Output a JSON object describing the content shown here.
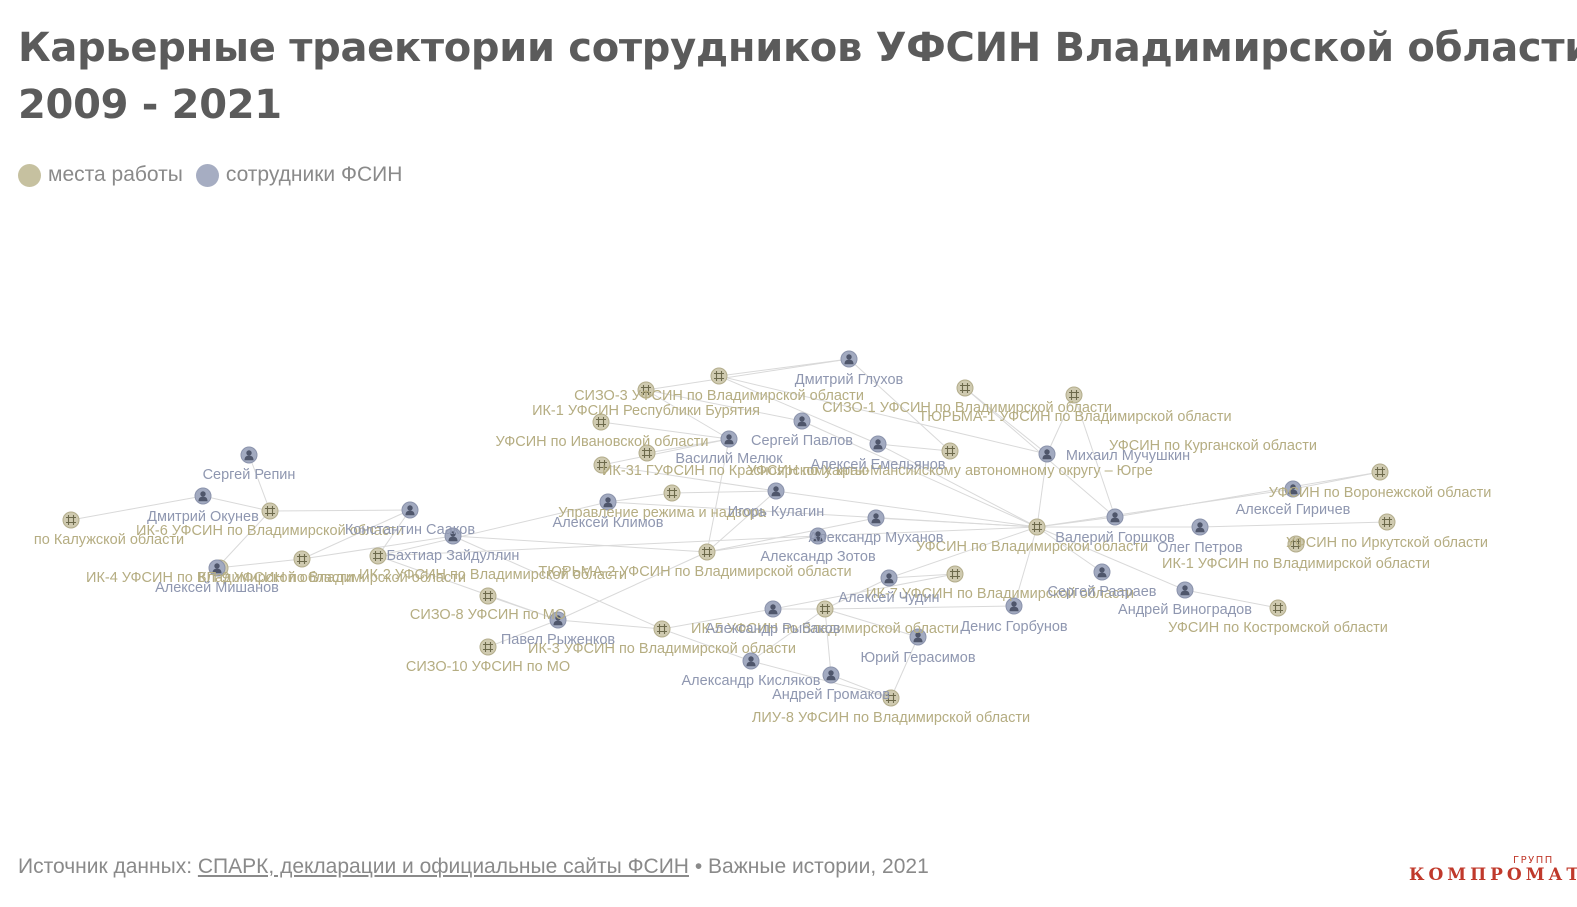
{
  "title": {
    "line1": "Карьерные траектории сотрудников УФСИН Владимирской области",
    "line2": "2009 - 2021"
  },
  "legend": {
    "place_label": "места работы",
    "person_label": "сотрудники ФСИН",
    "place_color": "#c6c1a0",
    "person_color": "#a6adc2"
  },
  "footer": {
    "source_prefix": "Источник данных:",
    "source_link": "СПАРК, декларации и официальные сайты ФСИН",
    "source_suffix": "• Важные истории, 2021"
  },
  "logo": {
    "main": "КОМПРОМАТ",
    "sup": "ГРУПП"
  },
  "diagram": {
    "type": "network",
    "node_types": {
      "place": {
        "icon": "grid-icon",
        "color": "#c6c1a0",
        "label_color": "#b5ad82"
      },
      "person": {
        "icon": "person-icon",
        "color": "#a6adc2",
        "label_color": "#8f97b0"
      }
    },
    "nodes": [
      {
        "id": "p_kaluga",
        "type": "place",
        "label": "по Калужской области"
      },
      {
        "id": "p_ik6",
        "type": "place",
        "label": "ИК-6 УФСИН по Владимирской области"
      },
      {
        "id": "p_ik4",
        "type": "place",
        "label": "ИК-4 УФСИН по Владимирской области"
      },
      {
        "id": "p_kp9",
        "type": "place",
        "label": "КП-9 УФСИН по Владимирской области"
      },
      {
        "id": "p_ik2",
        "type": "place",
        "label": "ИК-2 УФСИН по Владимирской области"
      },
      {
        "id": "p_sizo8",
        "type": "place",
        "label": "СИЗО-8 УФСИН по МО"
      },
      {
        "id": "p_sizo10",
        "type": "place",
        "label": "СИЗО-10 УФСИН по МО"
      },
      {
        "id": "p_ik3",
        "type": "place",
        "label": "ИК-3 УФСИН по Владимирской области"
      },
      {
        "id": "p_sizo3",
        "type": "place",
        "label": "СИЗО-3 УФСИН по Владимирской области"
      },
      {
        "id": "p_ik1bur",
        "type": "place",
        "label": "ИК-1 УФСИН Республики Бурятия"
      },
      {
        "id": "p_ivan",
        "type": "place",
        "label": "УФСИН по Ивановской области"
      },
      {
        "id": "p_ik31",
        "type": "place",
        "label": "ИК-31 ГУФСИН по Красноярскому краю"
      },
      {
        "id": "p_upr",
        "type": "place",
        "label": "Управление режима и надзора"
      },
      {
        "id": "p_turma2",
        "type": "place",
        "label": "ТЮРЬМА-2 УФСИН по Владимирской области"
      },
      {
        "id": "p_sizo1",
        "type": "place",
        "label": "СИЗО-1 УФСИН по Владимирской области"
      },
      {
        "id": "p_hmao",
        "type": "place",
        "label": "УФСИН по Ханты-Мансийскому автономному округу – Югре"
      },
      {
        "id": "p_turma1",
        "type": "place",
        "label": "ТЮРЬМА-1 УФСИН по Владимирской области"
      },
      {
        "id": "p_kurgan",
        "type": "place",
        "label": "УФСИН по Курганской области"
      },
      {
        "id": "p_vladobl",
        "type": "place",
        "label": "УФСИН по Владимирской области"
      },
      {
        "id": "p_ik5",
        "type": "place",
        "label": "ИК-5 УФСИН по Владимирской области"
      },
      {
        "id": "p_ik7",
        "type": "place",
        "label": "ИК-7 УФСИН по Владимирской области"
      },
      {
        "id": "p_liu8",
        "type": "place",
        "label": "ЛИУ-8 УФСИН по Владимирской области"
      },
      {
        "id": "p_voronezh",
        "type": "place",
        "label": "УФСИН по Воронежской области"
      },
      {
        "id": "p_irkutsk",
        "type": "place",
        "label": "УФСИН по Иркутской области"
      },
      {
        "id": "p_ik1vlad",
        "type": "place",
        "label": "ИК-1 УФСИН по Владимирской области"
      },
      {
        "id": "p_kostroma",
        "type": "place",
        "label": "УФСИН по Костромской области"
      },
      {
        "id": "h_a",
        "type": "person",
        "label": "Алексей Мишанов"
      },
      {
        "id": "h_b",
        "type": "person",
        "label": "Сергей Репин"
      },
      {
        "id": "h_c",
        "type": "person",
        "label": "Дмитрий Окунев"
      },
      {
        "id": "h_d",
        "type": "person",
        "label": "Константин Сааков"
      },
      {
        "id": "h_e",
        "type": "person",
        "label": "Бахтиар Зайдуллин"
      },
      {
        "id": "h_f",
        "type": "person",
        "label": "Дмитрий Глухов"
      },
      {
        "id": "h_g",
        "type": "person",
        "label": "Сергей Павлов"
      },
      {
        "id": "h_h",
        "type": "person",
        "label": "Василий Мелюк"
      },
      {
        "id": "h_i",
        "type": "person",
        "label": "Алексей Емельянов"
      },
      {
        "id": "h_j",
        "type": "person",
        "label": "Алексей Климов"
      },
      {
        "id": "h_k",
        "type": "person",
        "label": "Игорь Кулагин"
      },
      {
        "id": "h_l",
        "type": "person",
        "label": "Михаил Мучушкин"
      },
      {
        "id": "h_m",
        "type": "person",
        "label": "Александр Муханов"
      },
      {
        "id": "h_n",
        "type": "person",
        "label": "Александр Зотов"
      },
      {
        "id": "h_o",
        "type": "person",
        "label": "Алексей Чудин"
      },
      {
        "id": "h_p",
        "type": "person",
        "label": "Павел Рыженков"
      },
      {
        "id": "h_q",
        "type": "person",
        "label": "Александр Рыбаков"
      },
      {
        "id": "h_r",
        "type": "person",
        "label": "Александр Кисляков"
      },
      {
        "id": "h_s",
        "type": "person",
        "label": "Андрей Громаков"
      },
      {
        "id": "h_t",
        "type": "person",
        "label": "Юрий Герасимов"
      },
      {
        "id": "h_u",
        "type": "person",
        "label": "Денис Горбунов"
      },
      {
        "id": "h_v",
        "type": "person",
        "label": "Валерий Горшков"
      },
      {
        "id": "h_w",
        "type": "person",
        "label": "Сергей Раараев"
      },
      {
        "id": "h_x",
        "type": "person",
        "label": "Олег Петров"
      },
      {
        "id": "h_y",
        "type": "person",
        "label": "Андрей Виноградов"
      },
      {
        "id": "h_z",
        "type": "person",
        "label": "Алексей Гиричев"
      }
    ],
    "edges": [
      [
        "h_a",
        "p_ik6"
      ],
      [
        "h_a",
        "p_kp9"
      ],
      [
        "h_b",
        "p_ik6"
      ],
      [
        "h_c",
        "p_ik6"
      ],
      [
        "h_c",
        "p_kaluga"
      ],
      [
        "h_d",
        "p_ik6"
      ],
      [
        "h_d",
        "p_kp9"
      ],
      [
        "h_d",
        "p_ik2"
      ],
      [
        "h_e",
        "p_kp9"
      ],
      [
        "h_e",
        "p_turma2"
      ],
      [
        "h_e",
        "p_ik3"
      ],
      [
        "h_f",
        "p_sizo3"
      ],
      [
        "h_f",
        "p_sizo1"
      ],
      [
        "h_f",
        "p_hmao"
      ],
      [
        "h_g",
        "p_sizo3"
      ],
      [
        "h_g",
        "p_vladobl"
      ],
      [
        "h_h",
        "p_sizo3"
      ],
      [
        "h_h",
        "p_ivan"
      ],
      [
        "h_h",
        "p_ik1bur"
      ],
      [
        "h_h",
        "p_ik31"
      ],
      [
        "h_h",
        "p_turma2"
      ],
      [
        "h_i",
        "p_sizo1"
      ],
      [
        "h_i",
        "p_vladobl"
      ],
      [
        "h_i",
        "p_hmao"
      ],
      [
        "h_j",
        "p_upr"
      ],
      [
        "h_j",
        "p_ik2"
      ],
      [
        "h_j",
        "p_vladobl"
      ],
      [
        "h_k",
        "p_upr"
      ],
      [
        "h_k",
        "p_turma2"
      ],
      [
        "h_k",
        "p_vladobl"
      ],
      [
        "h_k",
        "p_ik31"
      ],
      [
        "h_l",
        "p_sizo1"
      ],
      [
        "h_l",
        "p_turma1"
      ],
      [
        "h_l",
        "p_vladobl"
      ],
      [
        "h_m",
        "p_turma2"
      ],
      [
        "h_m",
        "p_vladobl"
      ],
      [
        "h_n",
        "p_ik2"
      ],
      [
        "h_n",
        "p_vladobl"
      ],
      [
        "h_n",
        "p_turma2"
      ],
      [
        "h_o",
        "p_ik7"
      ],
      [
        "h_o",
        "p_vladobl"
      ],
      [
        "h_o",
        "p_ik5"
      ],
      [
        "h_p",
        "p_ik2"
      ],
      [
        "h_p",
        "p_ik3"
      ],
      [
        "h_p",
        "p_turma2"
      ],
      [
        "h_q",
        "p_ik3"
      ],
      [
        "h_q",
        "p_ik5"
      ],
      [
        "h_q",
        "p_ik7"
      ],
      [
        "h_r",
        "p_ik3"
      ],
      [
        "h_r",
        "p_ik5"
      ],
      [
        "h_r",
        "p_liu8"
      ],
      [
        "h_s",
        "p_ik5"
      ],
      [
        "h_s",
        "p_liu8"
      ],
      [
        "h_t",
        "p_ik5"
      ],
      [
        "h_t",
        "p_liu8"
      ],
      [
        "h_u",
        "p_ik5"
      ],
      [
        "h_u",
        "p_vladobl"
      ],
      [
        "h_v",
        "p_vladobl"
      ],
      [
        "h_v",
        "p_kurgan"
      ],
      [
        "h_v",
        "p_voronezh"
      ],
      [
        "h_w",
        "p_vladobl"
      ],
      [
        "h_x",
        "p_vladobl"
      ],
      [
        "h_x",
        "p_irkutsk"
      ],
      [
        "h_y",
        "p_vladobl"
      ],
      [
        "h_y",
        "p_kostroma"
      ],
      [
        "h_z",
        "p_voronezh"
      ],
      [
        "h_z",
        "p_vladobl"
      ],
      [
        "p_kurgan",
        "h_l"
      ],
      [
        "p_turma1",
        "h_v"
      ],
      [
        "p_sizo10",
        "h_p"
      ],
      [
        "p_sizo8",
        "h_p"
      ]
    ]
  }
}
